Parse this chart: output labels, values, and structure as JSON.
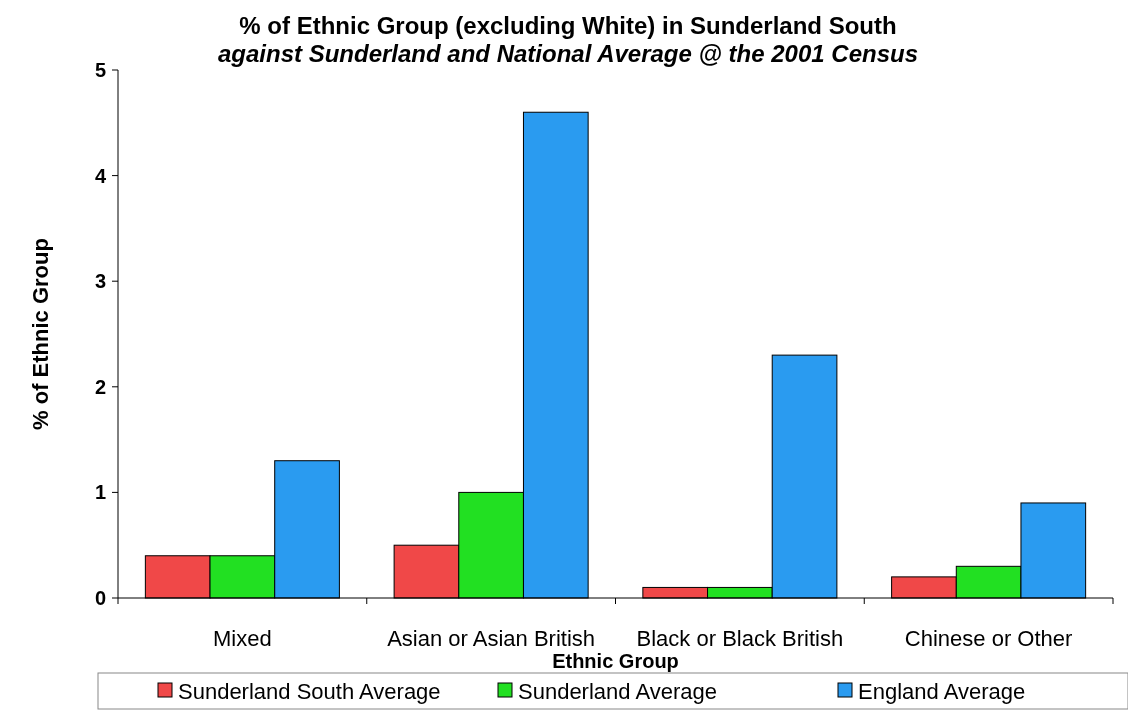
{
  "chart_data": {
    "type": "bar",
    "title": "% of Ethnic Group (excluding White) in Sunderland South",
    "subtitle": "against Sunderland and National Average @ the 2001 Census",
    "xlabel": "Ethnic Group",
    "ylabel": "% of Ethnic Group",
    "categories": [
      "Mixed",
      "Asian or Asian British",
      "Black or Black British",
      "Chinese or Other"
    ],
    "series": [
      {
        "name": "Sunderland South Average",
        "color": "#f04848",
        "values": [
          0.4,
          0.5,
          0.1,
          0.2
        ]
      },
      {
        "name": "Sunderland Average",
        "color": "#22e022",
        "values": [
          0.4,
          1.0,
          0.1,
          0.3
        ]
      },
      {
        "name": "England Average",
        "color": "#2a9bf0",
        "values": [
          1.3,
          4.6,
          2.3,
          0.9
        ]
      }
    ],
    "ylim": [
      0,
      5
    ],
    "yticks": [
      0,
      1,
      2,
      3,
      4,
      5
    ],
    "legend": "bottom"
  }
}
